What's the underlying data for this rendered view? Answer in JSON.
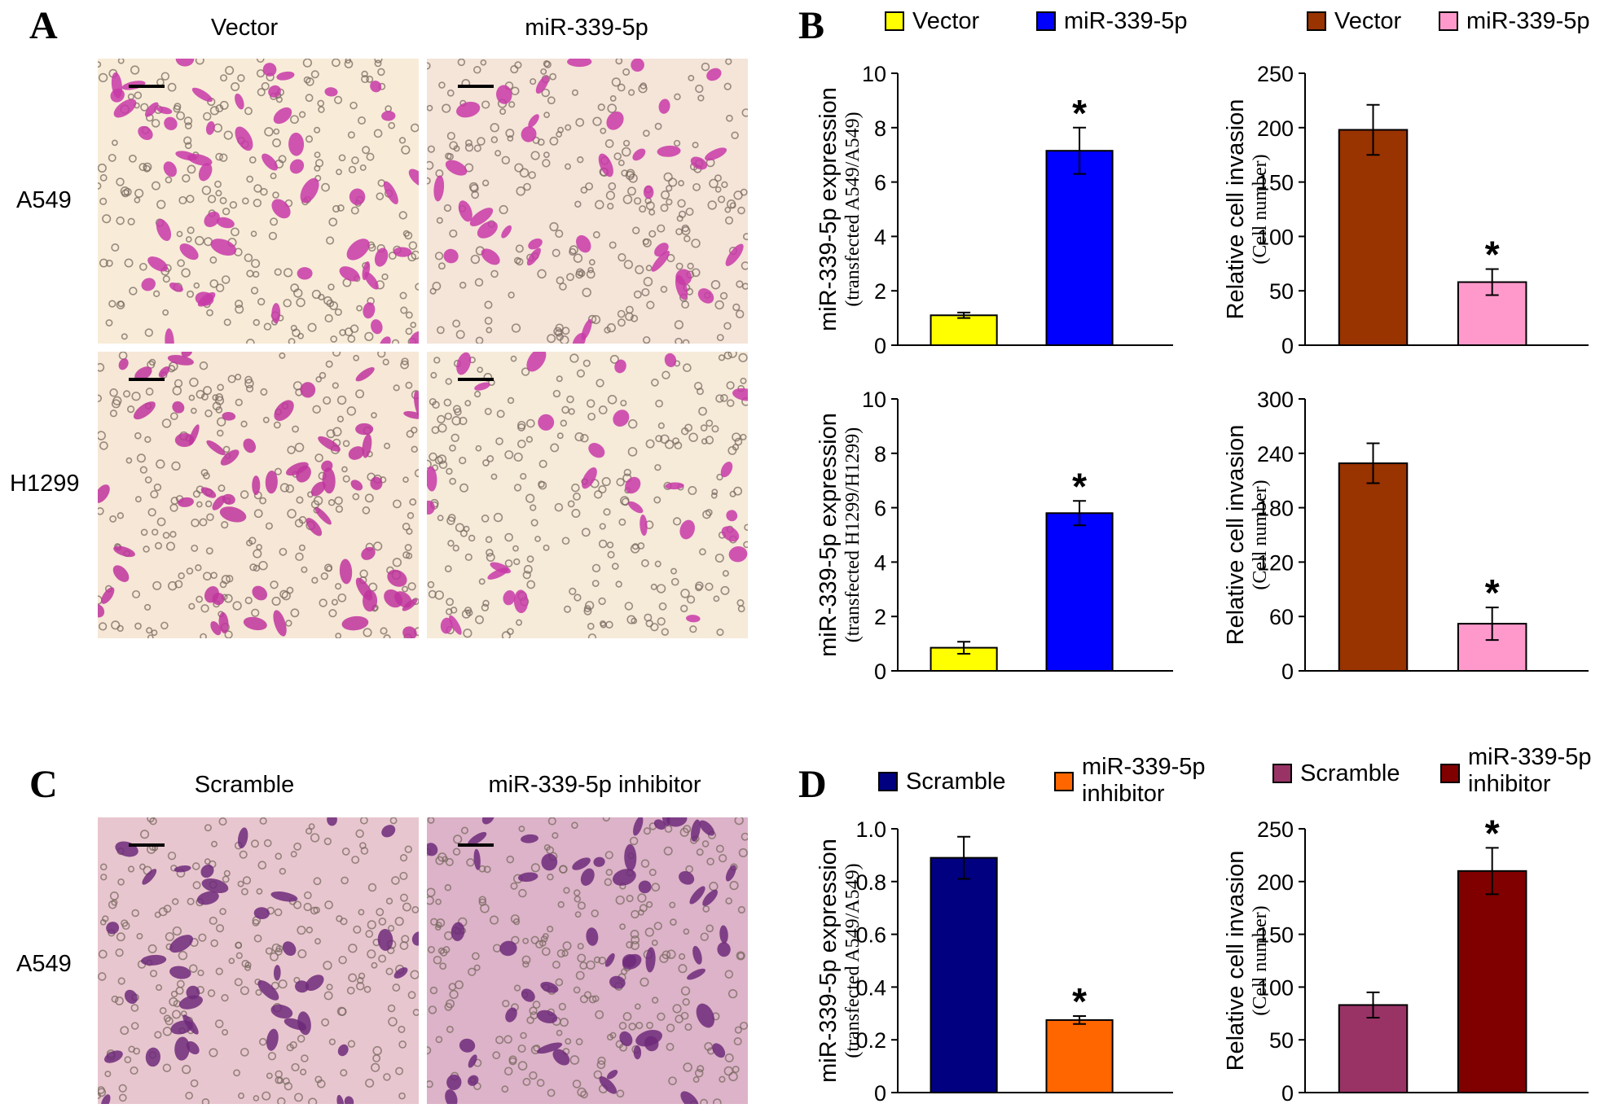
{
  "panels": {
    "A": {
      "letter": "A",
      "columns": [
        "Vector",
        "miR-339-5p"
      ],
      "rows": [
        "A549",
        "H1299"
      ]
    },
    "B": {
      "letter": "B",
      "legend_left": [
        "Vector",
        "miR-339-5p"
      ],
      "legend_right": [
        "Vector",
        "miR-339-5p"
      ]
    },
    "C": {
      "letter": "C",
      "columns": [
        "Scramble",
        "miR-339-5p inhibitor"
      ],
      "rows": [
        "A549"
      ]
    },
    "D": {
      "letter": "D",
      "legend_left": [
        "Scramble",
        "miR-339-5p inhibitor"
      ],
      "legend_right": [
        "Scramble",
        "miR-339-5p inhibitor"
      ]
    }
  },
  "colors": {
    "vector_yellow": "#ffff00",
    "mir_blue": "#0000ff",
    "vector_brown": "#993300",
    "mir_pink": "#ff99cc",
    "scramble_navy": "#000080",
    "inhibitor_orange": "#ff6600",
    "scramble_purple": "#993366",
    "inhibitor_darkred": "#800000",
    "stain_magenta": "#c03aa8",
    "stain_purple": "#6e2a7a"
  },
  "chart_data": [
    {
      "id": "b-top-left",
      "type": "bar",
      "categories": [
        "Vector",
        "miR-339-5p"
      ],
      "values": [
        1.1,
        7.15
      ],
      "errors": [
        0.1,
        0.85
      ],
      "significance": [
        "",
        "*"
      ],
      "ylabel": "miR-339-5p expression",
      "ylabel2": "(transfected A549/A549)",
      "ylim": [
        0,
        10
      ],
      "yticks": [
        0,
        2,
        4,
        6,
        8,
        10
      ],
      "colors": [
        "#ffff00",
        "#0000ff"
      ]
    },
    {
      "id": "b-top-right",
      "type": "bar",
      "categories": [
        "Vector",
        "miR-339-5p"
      ],
      "values": [
        198,
        58
      ],
      "errors": [
        23,
        12
      ],
      "significance": [
        "",
        "*"
      ],
      "ylabel": "Relative cell invasion",
      "ylabel2": "(Cell number)",
      "ylim": [
        0,
        250
      ],
      "yticks": [
        0,
        50,
        100,
        150,
        200,
        250
      ],
      "colors": [
        "#993300",
        "#ff99cc"
      ]
    },
    {
      "id": "b-bottom-left",
      "type": "bar",
      "categories": [
        "Vector",
        "miR-339-5p"
      ],
      "values": [
        0.85,
        5.8
      ],
      "errors": [
        0.22,
        0.45
      ],
      "significance": [
        "",
        "*"
      ],
      "ylabel": "miR-339-5p expression",
      "ylabel2": "(transfected H1299/H1299)",
      "ylim": [
        0,
        10
      ],
      "yticks": [
        0,
        2,
        4,
        6,
        8,
        10
      ],
      "colors": [
        "#ffff00",
        "#0000ff"
      ]
    },
    {
      "id": "b-bottom-right",
      "type": "bar",
      "categories": [
        "Vector",
        "miR-339-5p"
      ],
      "values": [
        229,
        52
      ],
      "errors": [
        22,
        18
      ],
      "significance": [
        "",
        "*"
      ],
      "ylabel": "Relative cell invasion",
      "ylabel2": "(Cell number)",
      "ylim": [
        0,
        300
      ],
      "yticks": [
        0,
        60,
        120,
        180,
        240,
        300
      ],
      "colors": [
        "#993300",
        "#ff99cc"
      ]
    },
    {
      "id": "d-left",
      "type": "bar",
      "categories": [
        "Scramble",
        "miR-339-5p inhibitor"
      ],
      "values": [
        0.89,
        0.275
      ],
      "errors": [
        0.08,
        0.015
      ],
      "significance": [
        "",
        "*"
      ],
      "ylabel": "miR-339-5p expression",
      "ylabel2": "(transfected A549/A549)",
      "ylim": [
        0,
        1.0
      ],
      "yticks": [
        0,
        0.2,
        0.4,
        0.6,
        0.8,
        1.0
      ],
      "ytick_labels": [
        "0",
        "0.2",
        "0.4",
        "0.6",
        "0.8",
        "1.0"
      ],
      "colors": [
        "#000080",
        "#ff6600"
      ]
    },
    {
      "id": "d-right",
      "type": "bar",
      "categories": [
        "Scramble",
        "miR-339-5p inhibitor"
      ],
      "values": [
        83,
        210
      ],
      "errors": [
        12,
        22
      ],
      "significance": [
        "",
        "*"
      ],
      "ylabel": "Relative cell invasion",
      "ylabel2": "(Cell number)",
      "ylim": [
        0,
        250
      ],
      "yticks": [
        0,
        50,
        100,
        150,
        200,
        250
      ],
      "colors": [
        "#993366",
        "#800000"
      ]
    }
  ]
}
